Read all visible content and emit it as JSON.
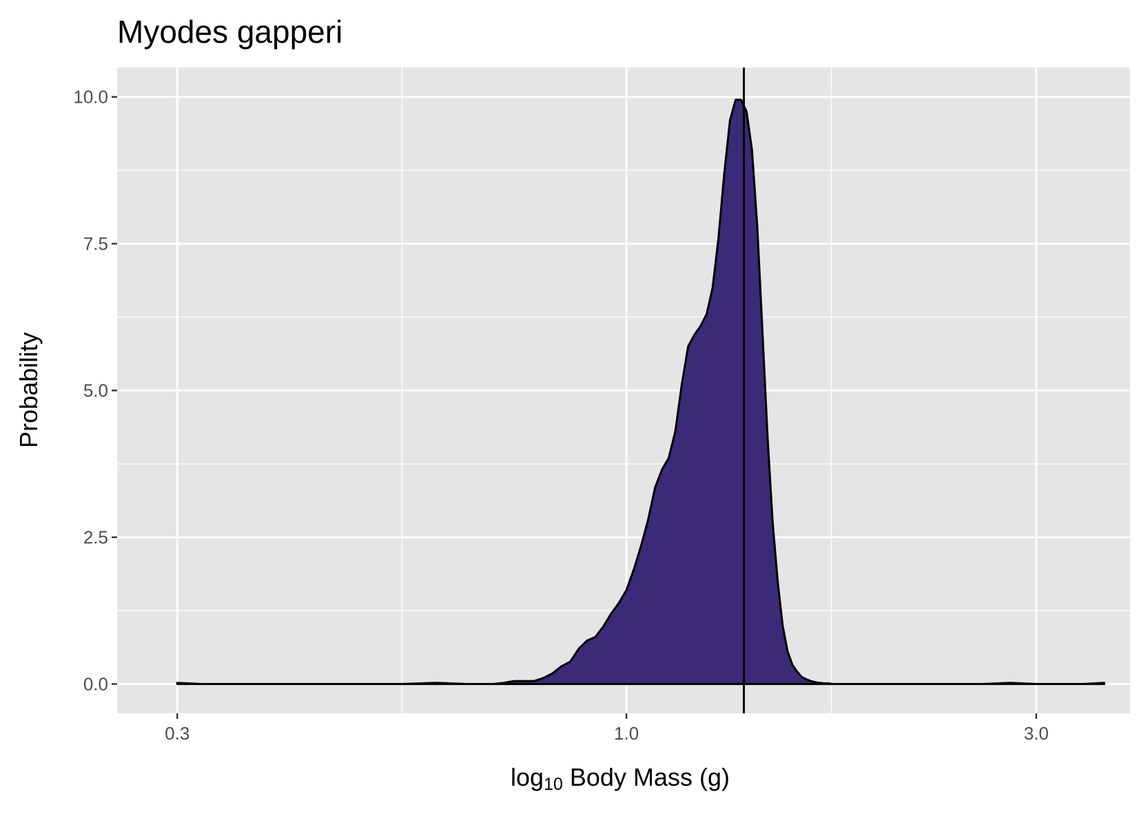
{
  "chart_data": {
    "type": "area",
    "title": "Myodes gapperi",
    "xlabel_prefix": "log",
    "xlabel_sub": "10",
    "xlabel_suffix": " Body Mass (g)",
    "ylabel": "Probability",
    "x_scale": "log10",
    "xlim": [
      0.3,
      3.6
    ],
    "ylim": [
      -0.5,
      10.5
    ],
    "x_ticks": [
      0.3,
      1.0,
      3.0
    ],
    "x_tick_labels": [
      "0.3",
      "1.0",
      "3.0"
    ],
    "x_minor_ticks": [
      0.548,
      1.732
    ],
    "y_ticks": [
      0.0,
      2.5,
      5.0,
      7.5,
      10.0
    ],
    "y_tick_labels": [
      "0.0",
      "2.5",
      "5.0",
      "7.5",
      "10.0"
    ],
    "y_minor_ticks": [
      1.25,
      3.75,
      6.25,
      8.75
    ],
    "grid": true,
    "vline_x": 1.37,
    "fill_color": "#3a2a78",
    "panel_color": "#e5e5e5",
    "series": [
      {
        "x": [
          0.3,
          0.32,
          0.35,
          0.4,
          0.45,
          0.5,
          0.52,
          0.55,
          0.6,
          0.65,
          0.68,
          0.7,
          0.72,
          0.74,
          0.76,
          0.78,
          0.8,
          0.82,
          0.84,
          0.86,
          0.88,
          0.9,
          0.92,
          0.94,
          0.96,
          0.98,
          1.0,
          1.02,
          1.04,
          1.06,
          1.08,
          1.1,
          1.12,
          1.14,
          1.16,
          1.18,
          1.2,
          1.22,
          1.24,
          1.26,
          1.28,
          1.3,
          1.32,
          1.34,
          1.36,
          1.38,
          1.4,
          1.42,
          1.44,
          1.46,
          1.48,
          1.5,
          1.52,
          1.54,
          1.56,
          1.58,
          1.6,
          1.62,
          1.64,
          1.66,
          1.68,
          1.7,
          1.72,
          1.74,
          1.76,
          1.8,
          1.85,
          1.9,
          2.0,
          2.2,
          2.4,
          2.6,
          2.8,
          3.0,
          3.2,
          3.4,
          3.6
        ],
        "y": [
          0.02,
          0.0,
          0.0,
          0.0,
          0.0,
          0.0,
          0.0,
          0.0,
          0.02,
          0.0,
          0.0,
          0.0,
          0.02,
          0.05,
          0.05,
          0.05,
          0.1,
          0.18,
          0.3,
          0.38,
          0.6,
          0.74,
          0.8,
          0.98,
          1.2,
          1.38,
          1.6,
          1.95,
          2.35,
          2.8,
          3.35,
          3.65,
          3.85,
          4.3,
          5.1,
          5.75,
          5.95,
          6.1,
          6.3,
          6.75,
          7.6,
          8.7,
          9.6,
          9.95,
          9.95,
          9.75,
          9.1,
          7.8,
          6.0,
          4.2,
          2.75,
          1.75,
          1.0,
          0.56,
          0.33,
          0.21,
          0.12,
          0.08,
          0.05,
          0.03,
          0.02,
          0.01,
          0.01,
          0.0,
          0.0,
          0.0,
          0.0,
          0.0,
          0.0,
          0.0,
          0.0,
          0.0,
          0.02,
          0.0,
          0.0,
          0.0,
          0.02
        ]
      }
    ]
  }
}
